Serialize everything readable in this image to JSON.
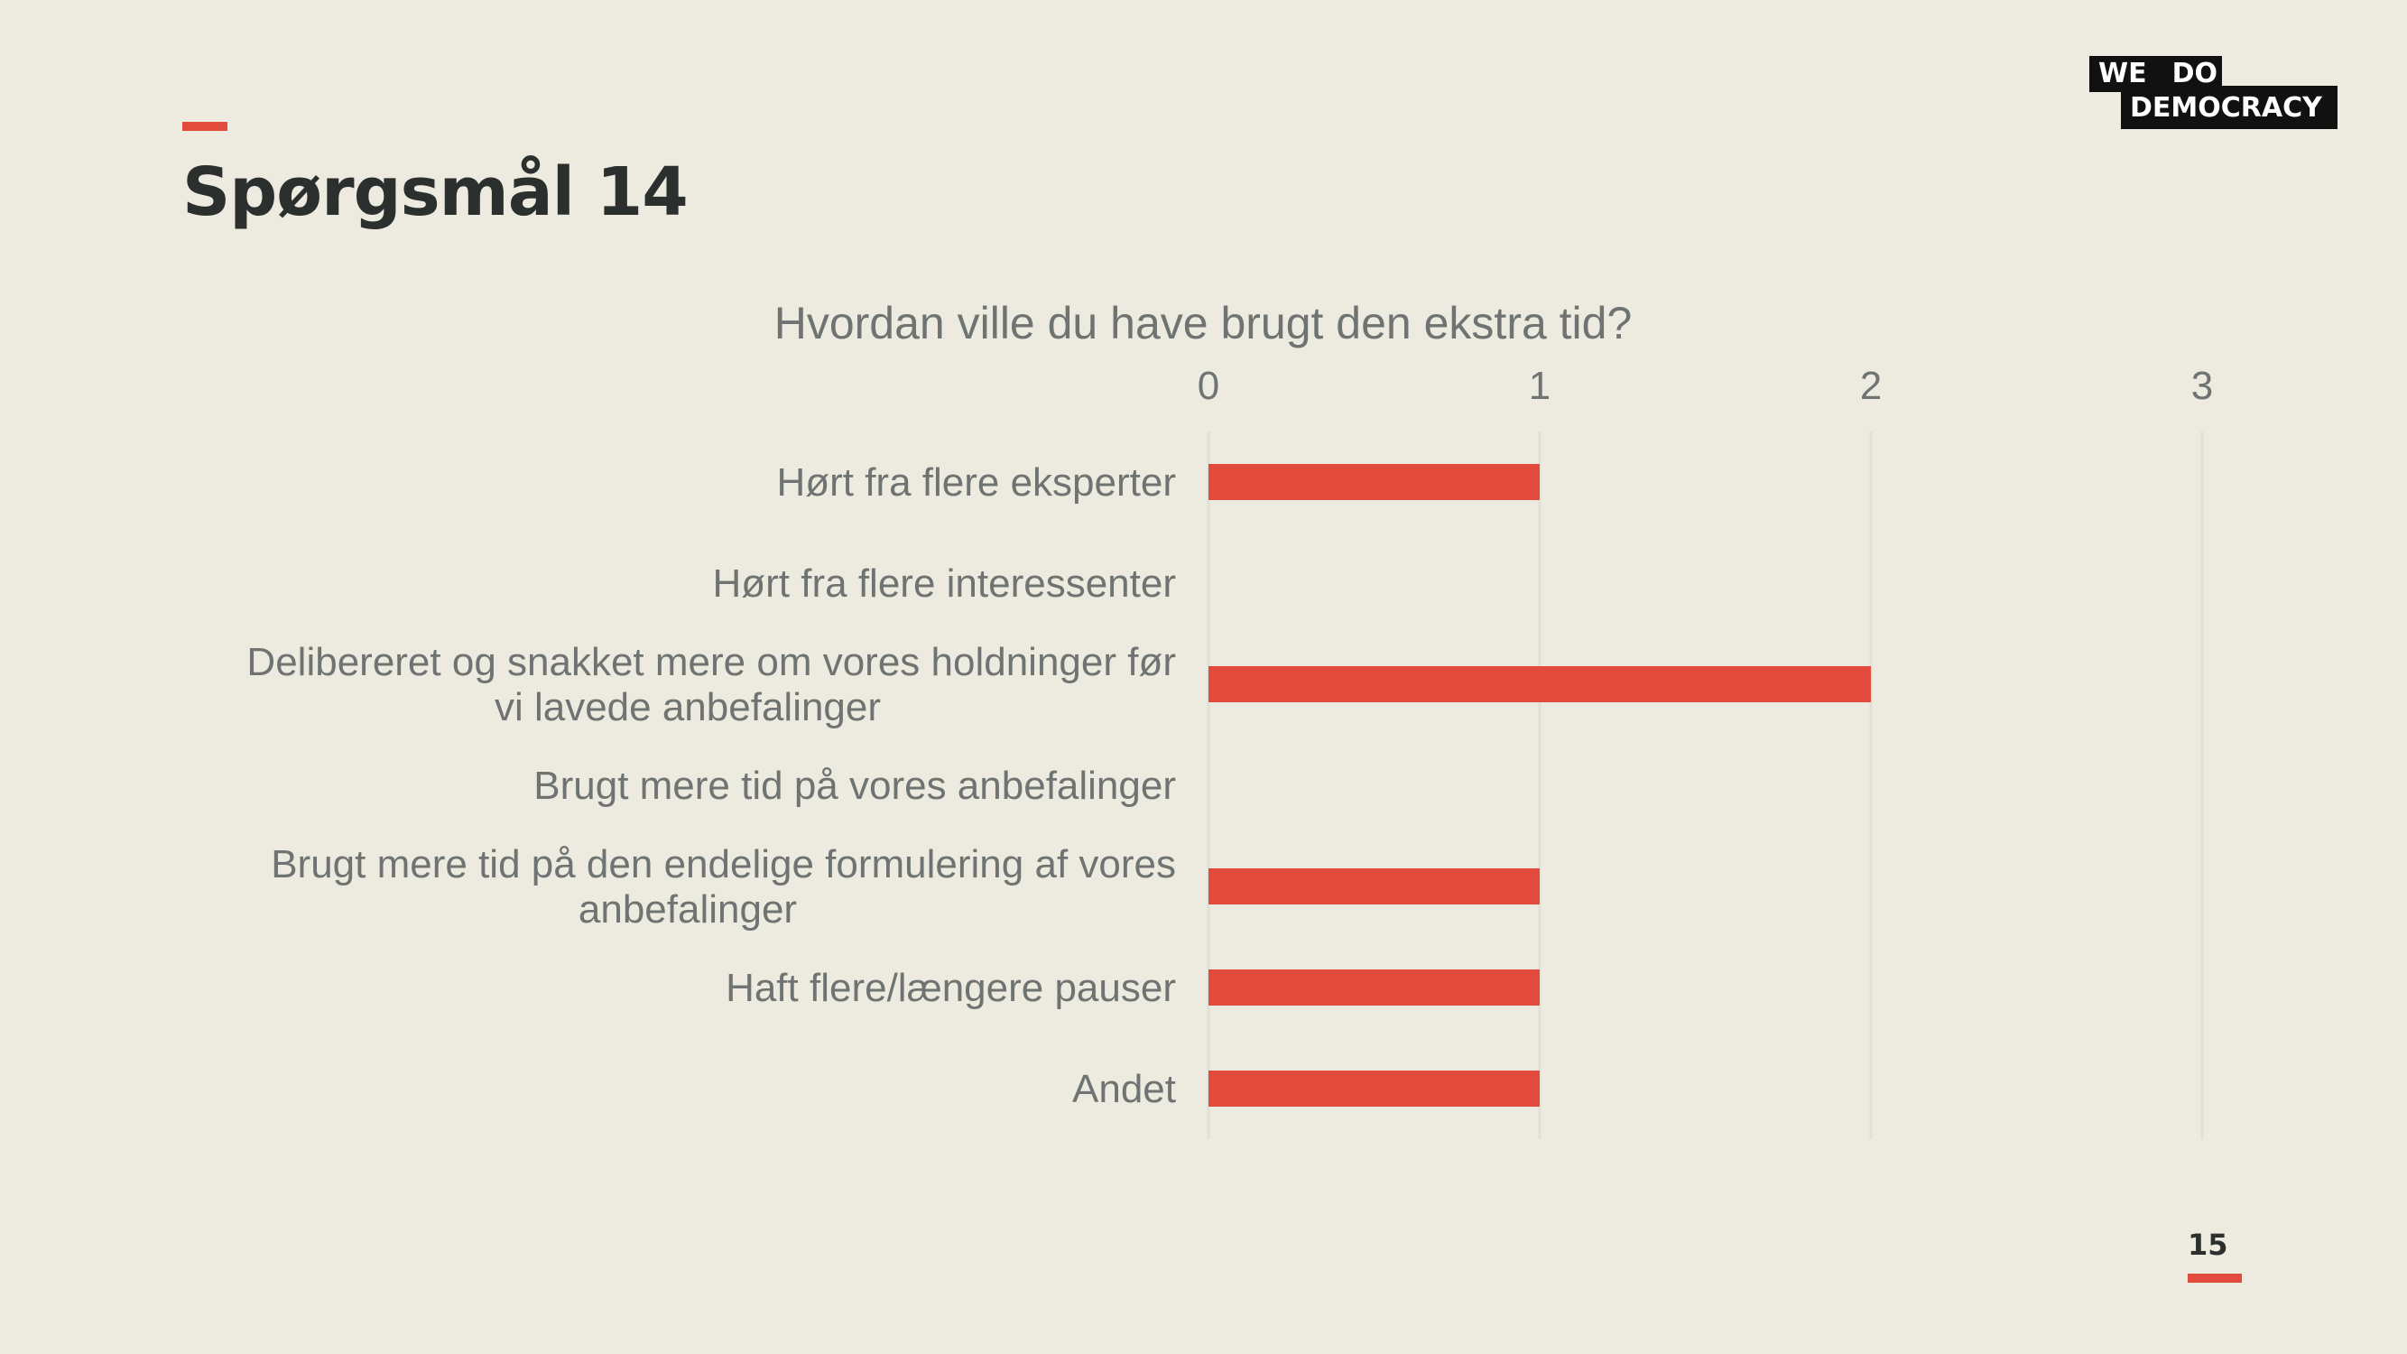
{
  "slide": {
    "title": "Spørgsmål 14",
    "page_number": "15"
  },
  "logo": {
    "line1_left": "WE",
    "line1_right": "DO",
    "line2": "DEMOCRACY"
  },
  "colors": {
    "background": "#edebe0",
    "accent": "#e24b3b",
    "title_text": "#2b2f2d",
    "label_text": "#6f7472",
    "grid": "#e2e0d6"
  },
  "chart_data": {
    "type": "bar",
    "orientation": "horizontal",
    "title": "Hvordan ville du have brugt den ekstra tid?",
    "categories": [
      [
        "Hørt fra flere eksperter"
      ],
      [
        "Hørt fra flere interessenter"
      ],
      [
        "Delibereret og snakket mere om vores holdninger før",
        "vi lavede anbefalinger"
      ],
      [
        "Brugt mere tid på vores anbefalinger"
      ],
      [
        "Brugt mere tid på den endelige formulering af vores",
        "anbefalinger"
      ],
      [
        "Haft flere/længere pauser"
      ],
      [
        "Andet"
      ]
    ],
    "values": [
      1,
      0,
      2,
      0,
      1,
      1,
      1
    ],
    "xlim": [
      0,
      3
    ],
    "x_ticks": [
      "0",
      "1",
      "2",
      "3"
    ],
    "axis_position": "top",
    "grid": true,
    "legend": "none"
  }
}
